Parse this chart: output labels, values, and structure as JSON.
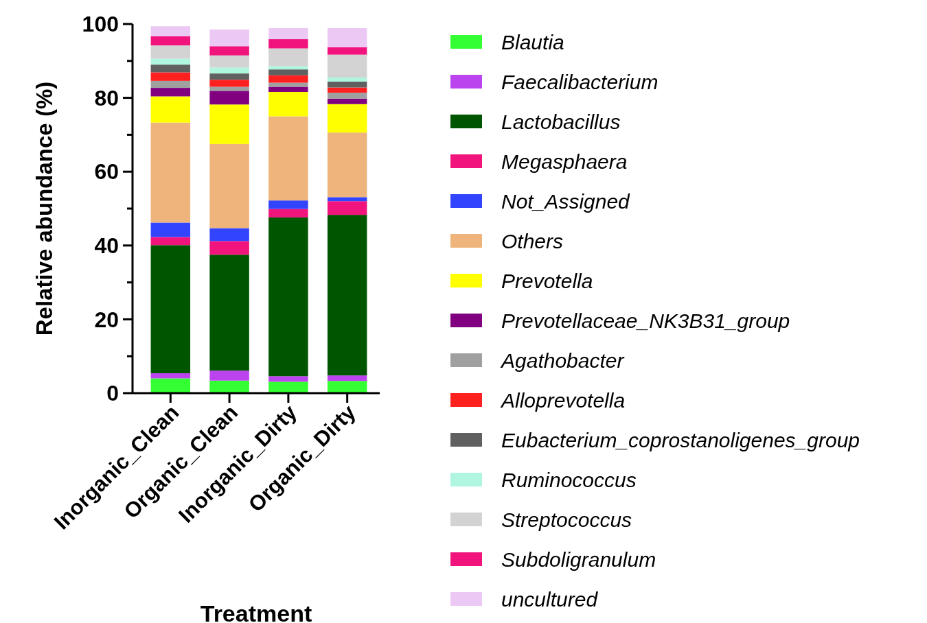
{
  "chart_data": {
    "type": "bar",
    "stacked": true,
    "xlabel": "Treatment",
    "ylabel": "Relative abundance (%)",
    "legend": "right",
    "categories": [
      "Inorganic_Clean",
      "Organic_Clean",
      "Inorganic_Dirty",
      "Organic_Dirty"
    ],
    "ylim": [
      0,
      100
    ],
    "yticks": [
      0,
      {
        "value": 10,
        "label": null
      },
      20,
      {
        "value": 30,
        "label": null
      },
      40,
      {
        "value": 50,
        "label": null
      },
      60,
      {
        "value": 70,
        "label": null
      },
      80,
      {
        "value": 90,
        "label": null
      },
      100
    ],
    "series": [
      {
        "name": "Blautia",
        "color": "#33ff33",
        "values": [
          4.0,
          3.4,
          3.1,
          3.3
        ]
      },
      {
        "name": "Faecalibacterium",
        "color": "#bb44ee",
        "values": [
          1.4,
          2.7,
          1.5,
          1.5
        ]
      },
      {
        "name": "Lactobacillus",
        "color": "#005500",
        "values": [
          34.7,
          31.4,
          43.0,
          43.5
        ]
      },
      {
        "name": "Megasphaera",
        "color": "#f0147c",
        "values": [
          2.2,
          3.7,
          2.3,
          3.7
        ]
      },
      {
        "name": "Not_Assigned",
        "color": "#3344ff",
        "values": [
          3.9,
          3.5,
          2.3,
          1.1
        ]
      },
      {
        "name": "Others",
        "color": "#eeb47c",
        "values": [
          27.1,
          22.8,
          22.8,
          17.5
        ]
      },
      {
        "name": "Prevotella",
        "color": "#ffff00",
        "values": [
          7.1,
          10.7,
          6.6,
          7.7
        ]
      },
      {
        "name": "Prevotellaceae_NK3B31_group",
        "color": "#800080",
        "values": [
          2.3,
          3.7,
          1.4,
          1.5
        ]
      },
      {
        "name": "Agathobacter",
        "color": "#a0a0a0",
        "values": [
          1.9,
          1.1,
          1.1,
          1.6
        ]
      },
      {
        "name": "Alloprevotella",
        "color": "#ff2020",
        "values": [
          2.3,
          1.9,
          2.0,
          1.4
        ]
      },
      {
        "name": "Eubacterium_coprostanoligenes_group",
        "color": "#606060",
        "values": [
          2.1,
          1.7,
          1.6,
          1.6
        ]
      },
      {
        "name": "Ruminococcus",
        "color": "#b0f5e0",
        "values": [
          1.6,
          1.6,
          0.9,
          1.1
        ]
      },
      {
        "name": "Streptococcus",
        "color": "#d3d3d3",
        "values": [
          3.6,
          3.3,
          4.8,
          6.2
        ]
      },
      {
        "name": "Subdoligranulum",
        "color": "#f0147c",
        "values": [
          2.5,
          2.5,
          2.5,
          2.0
        ]
      },
      {
        "name": "uncultured",
        "color": "#ecc8f5",
        "values": [
          2.7,
          4.5,
          3.0,
          5.2
        ]
      }
    ]
  }
}
